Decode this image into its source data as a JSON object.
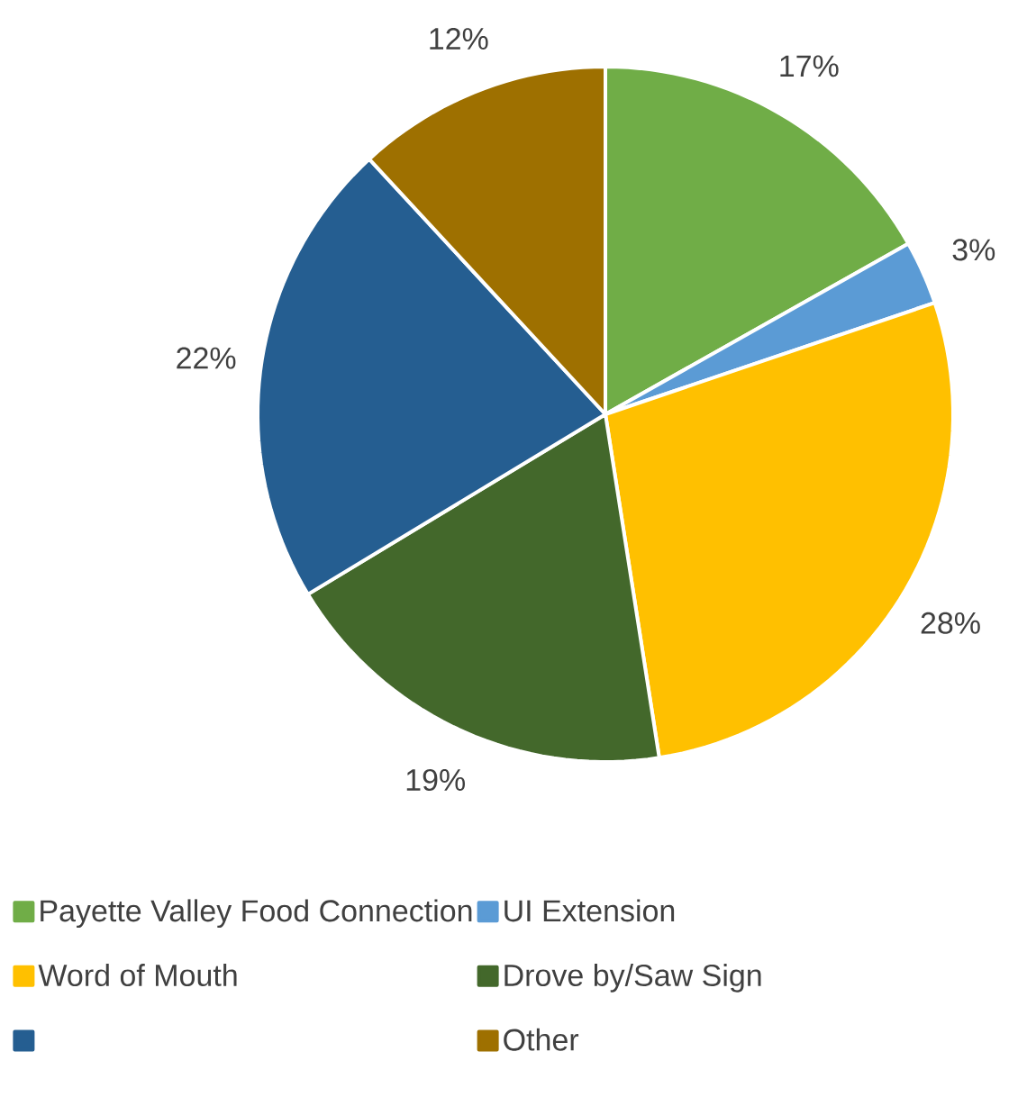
{
  "chart_data": {
    "type": "pie",
    "categories": [
      "Payette Valley Food Connection",
      "UI Extension",
      "Word of Mouth",
      "Drove by/Saw Sign",
      null,
      "Other"
    ],
    "values": [
      17,
      3,
      28,
      19,
      22,
      12
    ],
    "value_labels": [
      "17%",
      "3%",
      "28%",
      "19%",
      "22%",
      "12%"
    ],
    "colors": [
      "#70ad47",
      "#5b9bd5",
      "#ffc000",
      "#43682b",
      "#255e91",
      "#9e7000"
    ],
    "legend": "bottom"
  }
}
